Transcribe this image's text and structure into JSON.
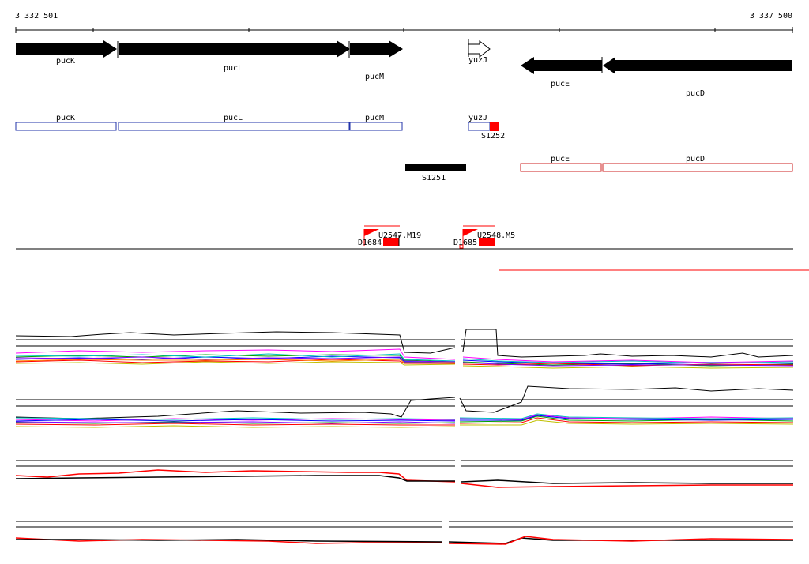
{
  "ruler": {
    "start_label": "3 332 501",
    "end_label": "3 337 500"
  },
  "genes": [
    {
      "name": "pucK",
      "strand": "+"
    },
    {
      "name": "pucL",
      "strand": "+"
    },
    {
      "name": "pucM",
      "strand": "+"
    },
    {
      "name": "yuzJ",
      "strand": "+",
      "outline": true
    },
    {
      "name": "pucE",
      "strand": "-"
    },
    {
      "name": "pucD",
      "strand": "-"
    }
  ],
  "annotation_plus": [
    "pucK",
    "pucL",
    "pucM",
    "yuzJ"
  ],
  "annotation_minus": [
    "pucE",
    "pucD"
  ],
  "segments": [
    "S1252",
    "S1251"
  ],
  "promoters": [
    {
      "upstream": "U2547.M19",
      "downstream": "D1684"
    },
    {
      "upstream": "U2548.M5",
      "downstream": "D1685"
    }
  ],
  "colors": {
    "gene_fill": "#000000",
    "plus_outline": "#2233aa",
    "minus_outline": "#cc2222",
    "segment_red": "#ff0000",
    "track_red": "#ff0000"
  }
}
